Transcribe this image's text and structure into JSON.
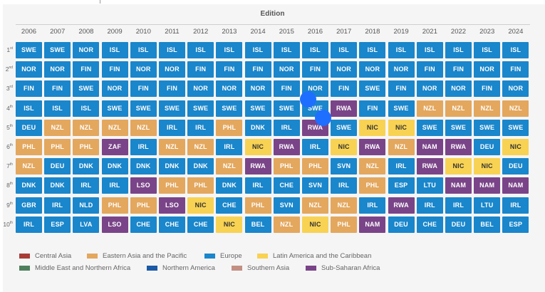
{
  "chart_data": {
    "type": "table",
    "title": "Edition",
    "years": [
      "2006",
      "2007",
      "2008",
      "2009",
      "2010",
      "2011",
      "2012",
      "2013",
      "2014",
      "2015",
      "2016",
      "2017",
      "2018",
      "2019",
      "2021",
      "2022",
      "2023",
      "2024"
    ],
    "ranks": [
      {
        "n": "1",
        "suffix": "st"
      },
      {
        "n": "2",
        "suffix": "nd"
      },
      {
        "n": "3",
        "suffix": "rd"
      },
      {
        "n": "4",
        "suffix": "th"
      },
      {
        "n": "5",
        "suffix": "th"
      },
      {
        "n": "6",
        "suffix": "th"
      },
      {
        "n": "7",
        "suffix": "th"
      },
      {
        "n": "8",
        "suffix": "th"
      },
      {
        "n": "9",
        "suffix": "th"
      },
      {
        "n": "10",
        "suffix": "th"
      }
    ],
    "grid": [
      [
        "SWE",
        "SWE",
        "NOR",
        "ISL",
        "ISL",
        "ISL",
        "ISL",
        "ISL",
        "ISL",
        "ISL",
        "ISL",
        "ISL",
        "ISL",
        "ISL",
        "ISL",
        "ISL",
        "ISL",
        "ISL"
      ],
      [
        "NOR",
        "NOR",
        "FIN",
        "FIN",
        "NOR",
        "NOR",
        "FIN",
        "FIN",
        "FIN",
        "NOR",
        "FIN",
        "NOR",
        "NOR",
        "NOR",
        "FIN",
        "FIN",
        "NOR",
        "FIN"
      ],
      [
        "FIN",
        "FIN",
        "SWE",
        "NOR",
        "FIN",
        "FIN",
        "NOR",
        "NOR",
        "NOR",
        "FIN",
        "NOR",
        "FIN",
        "SWE",
        "FIN",
        "NOR",
        "NOR",
        "FIN",
        "NOR"
      ],
      [
        "ISL",
        "ISL",
        "ISL",
        "SWE",
        "SWE",
        "SWE",
        "SWE",
        "SWE",
        "SWE",
        "SWE",
        "SWE",
        "RWA",
        "FIN",
        "SWE",
        "NZL",
        "NZL",
        "NZL",
        "NZL"
      ],
      [
        "DEU",
        "NZL",
        "NZL",
        "NZL",
        "NZL",
        "IRL",
        "IRL",
        "PHL",
        "DNK",
        "IRL",
        "RWA",
        "SWE",
        "NIC",
        "NIC",
        "SWE",
        "SWE",
        "SWE",
        "SWE"
      ],
      [
        "PHL",
        "PHL",
        "PHL",
        "ZAF",
        "IRL",
        "NZL",
        "NZL",
        "IRL",
        "NIC",
        "RWA",
        "IRL",
        "NIC",
        "RWA",
        "NZL",
        "NAM",
        "RWA",
        "DEU",
        "NIC"
      ],
      [
        "NZL",
        "DEU",
        "DNK",
        "DNK",
        "DNK",
        "DNK",
        "DNK",
        "NZL",
        "RWA",
        "PHL",
        "PHL",
        "SVN",
        "NZL",
        "IRL",
        "RWA",
        "NIC",
        "NIC",
        "DEU"
      ],
      [
        "DNK",
        "DNK",
        "IRL",
        "IRL",
        "LSO",
        "PHL",
        "PHL",
        "DNK",
        "IRL",
        "CHE",
        "SVN",
        "IRL",
        "PHL",
        "ESP",
        "LTU",
        "NAM",
        "NAM",
        "NAM"
      ],
      [
        "GBR",
        "IRL",
        "NLD",
        "PHL",
        "PHL",
        "LSO",
        "NIC",
        "CHE",
        "PHL",
        "SVN",
        "NZL",
        "NZL",
        "IRL",
        "RWA",
        "IRL",
        "IRL",
        "LTU",
        "IRL"
      ],
      [
        "IRL",
        "ESP",
        "LVA",
        "LSO",
        "CHE",
        "CHE",
        "CHE",
        "NIC",
        "BEL",
        "NZL",
        "NIC",
        "PHL",
        "NAM",
        "DEU",
        "CHE",
        "DEU",
        "BEL",
        "ESP"
      ]
    ],
    "region_of": {
      "SWE": "Europe",
      "NOR": "Europe",
      "FIN": "Europe",
      "ISL": "Europe",
      "DEU": "Europe",
      "DNK": "Europe",
      "IRL": "Europe",
      "GBR": "Europe",
      "NLD": "Europe",
      "ESP": "Europe",
      "LVA": "Europe",
      "CHE": "Europe",
      "BEL": "Europe",
      "SVN": "Europe",
      "LTU": "Europe",
      "NZL": "Eastern Asia and the Pacific",
      "PHL": "Eastern Asia and the Pacific",
      "NIC": "Latin America and the Caribbean",
      "RWA": "Sub-Saharan Africa",
      "ZAF": "Sub-Saharan Africa",
      "LSO": "Sub-Saharan Africa",
      "NAM": "Sub-Saharan Africa"
    },
    "legend": [
      {
        "label": "Central Asia",
        "color": "#a83d37"
      },
      {
        "label": "Eastern Asia and the Pacific",
        "color": "#e3a75e"
      },
      {
        "label": "Europe",
        "color": "#1a86cb"
      },
      {
        "label": "Latin America and the Caribbean",
        "color": "#f8d253"
      },
      {
        "label": "Middle East and Northern Africa",
        "color": "#4e7f5c"
      },
      {
        "label": "Northern America",
        "color": "#1b5aa6"
      },
      {
        "label": "Southern Asia",
        "color": "#c28f83"
      },
      {
        "label": "Sub-Saharan Africa",
        "color": "#7a4488"
      }
    ]
  }
}
